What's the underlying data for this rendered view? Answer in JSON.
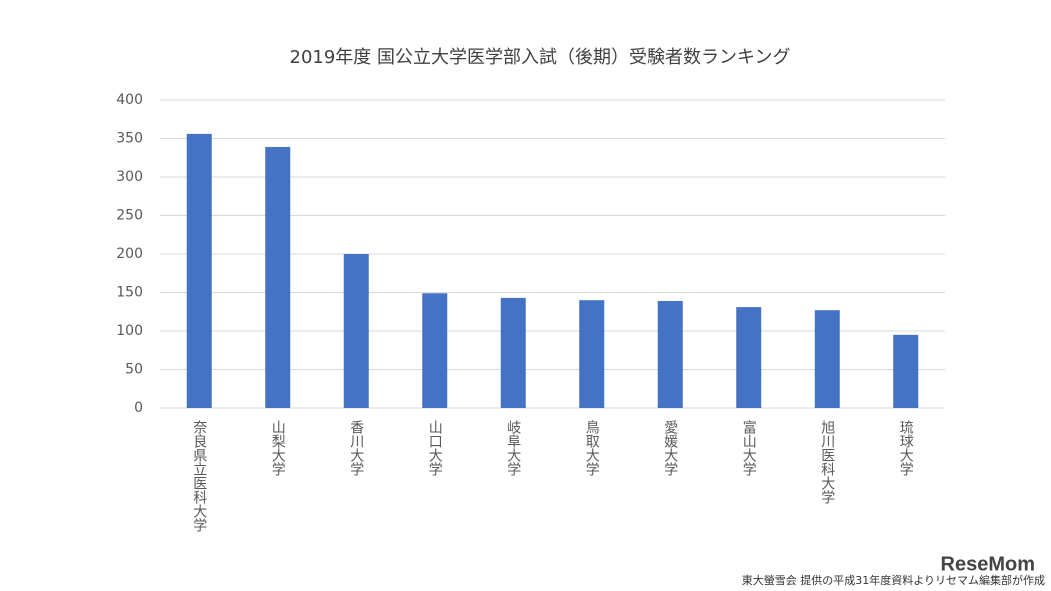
{
  "chart_data": {
    "type": "bar",
    "title": "2019年度 国公立大学医学部入試（後期）受験者数ランキング",
    "categories": [
      "奈良県立医科大学",
      "山梨大学",
      "香川大学",
      "山口大学",
      "岐阜大学",
      "鳥取大学",
      "愛媛大学",
      "富山大学",
      "旭川医科大学",
      "琉球大学"
    ],
    "values": [
      356,
      339,
      200,
      149,
      143,
      140,
      139,
      131,
      127,
      95
    ],
    "color": "#4472c4",
    "ylim": [
      0,
      400
    ],
    "yticks": [
      0,
      50,
      100,
      150,
      200,
      250,
      300,
      350,
      400
    ],
    "grid": true,
    "source": "東大螢雪会 提供の平成31年度資料よりリセマム編集部が作成",
    "logo": "ReseMom"
  }
}
